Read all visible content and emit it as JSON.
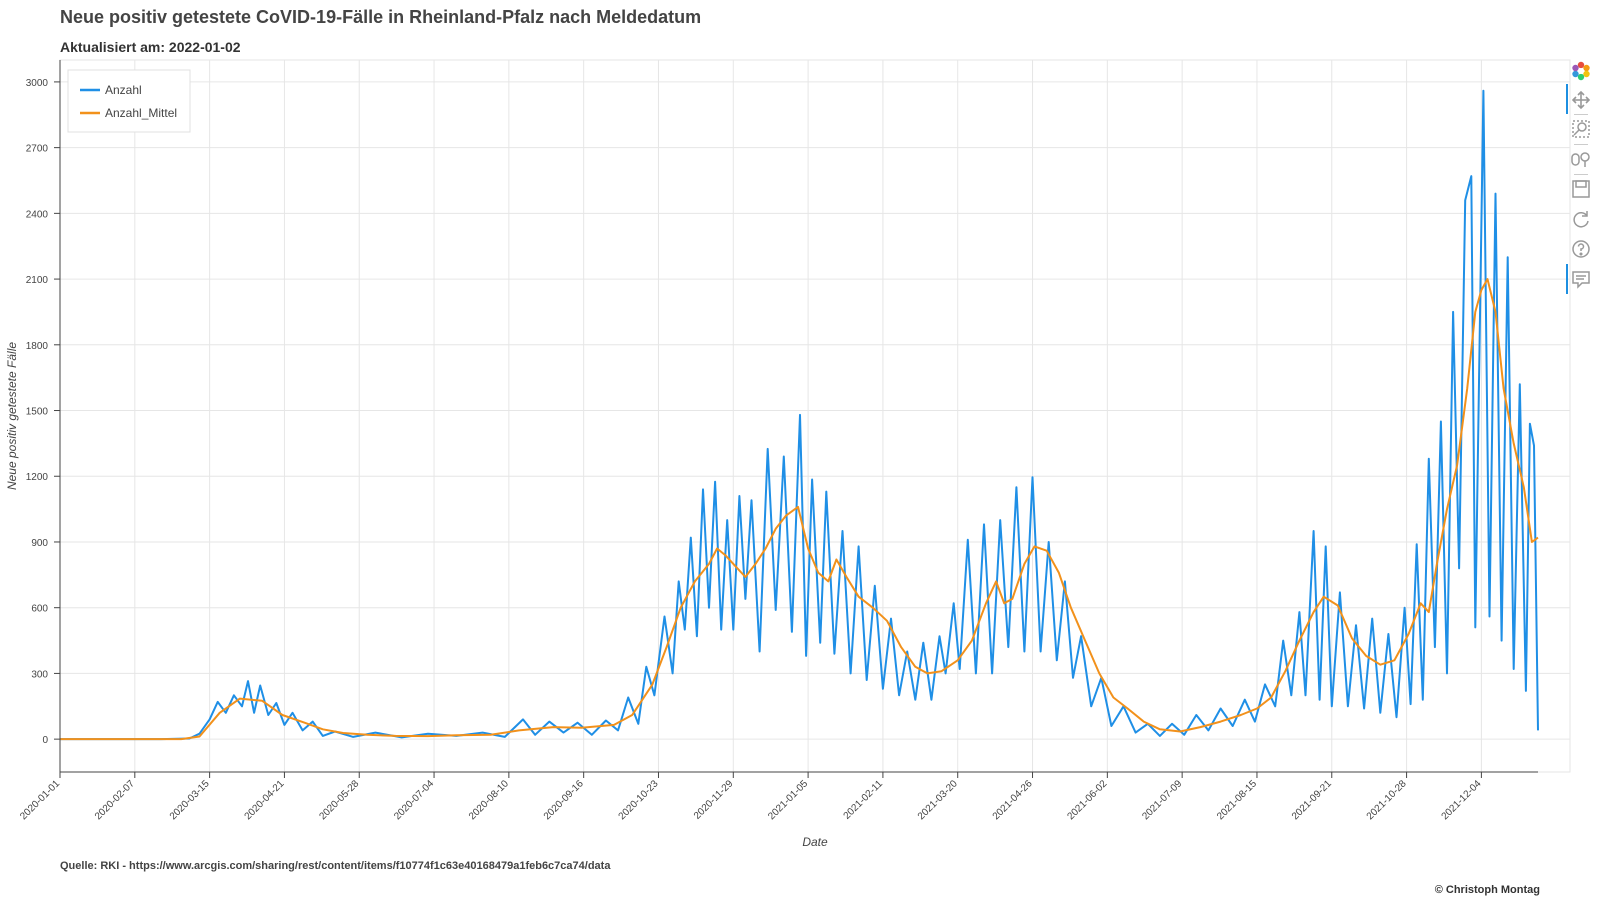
{
  "title": "Neue positiv getestete CoVID-19-Fälle in Rheinland-Pfalz nach Meldedatum",
  "subtitle": "Aktualisiert am: 2022-01-02",
  "source": "Quelle: RKI - https://www.arcgis.com/sharing/rest/content/items/f10774f1c63e40168479a1feb6c7ca74/data",
  "copyright": "© Christoph Montag",
  "toolbar": {
    "icons": [
      "bokeh-logo-icon",
      "pan-icon",
      "box-zoom-icon",
      "wheel-zoom-icon",
      "save-icon",
      "reset-icon",
      "help-icon",
      "hover-icon"
    ]
  },
  "chart_data": {
    "type": "line",
    "xlabel": "Date",
    "ylabel": "Neue positiv getestete Fälle",
    "x_ticks": [
      "2020-01-01",
      "2020-02-07",
      "2020-03-15",
      "2020-04-21",
      "2020-05-28",
      "2020-07-04",
      "2020-08-10",
      "2020-09-16",
      "2020-10-23",
      "2020-11-29",
      "2021-01-05",
      "2021-02-11",
      "2021-03-20",
      "2021-04-26",
      "2021-06-02",
      "2021-07-09",
      "2021-08-15",
      "2021-09-21",
      "2021-10-28",
      "2021-12-04"
    ],
    "y_ticks": [
      0,
      300,
      600,
      900,
      1200,
      1500,
      1800,
      2100,
      2400,
      2700,
      3000
    ],
    "xlim": [
      "2020-01-01",
      "2022-01-01"
    ],
    "ylim": [
      -150,
      3100
    ],
    "grid": true,
    "legend_position": "top-left",
    "colors": {
      "Anzahl": "#1f8fe6",
      "Anzahl_Mittel": "#f2911b"
    },
    "series": [
      {
        "name": "Anzahl",
        "points": [
          [
            "2020-01-01",
            0
          ],
          [
            "2020-02-20",
            0
          ],
          [
            "2020-03-05",
            3
          ],
          [
            "2020-03-10",
            25
          ],
          [
            "2020-03-15",
            90
          ],
          [
            "2020-03-19",
            170
          ],
          [
            "2020-03-23",
            120
          ],
          [
            "2020-03-27",
            200
          ],
          [
            "2020-03-31",
            150
          ],
          [
            "2020-04-03",
            265
          ],
          [
            "2020-04-06",
            120
          ],
          [
            "2020-04-09",
            245
          ],
          [
            "2020-04-13",
            110
          ],
          [
            "2020-04-17",
            165
          ],
          [
            "2020-04-21",
            65
          ],
          [
            "2020-04-25",
            120
          ],
          [
            "2020-04-30",
            40
          ],
          [
            "2020-05-05",
            80
          ],
          [
            "2020-05-10",
            15
          ],
          [
            "2020-05-16",
            35
          ],
          [
            "2020-05-25",
            10
          ],
          [
            "2020-06-05",
            30
          ],
          [
            "2020-06-18",
            8
          ],
          [
            "2020-07-01",
            25
          ],
          [
            "2020-07-15",
            15
          ],
          [
            "2020-07-28",
            30
          ],
          [
            "2020-08-08",
            10
          ],
          [
            "2020-08-17",
            90
          ],
          [
            "2020-08-23",
            20
          ],
          [
            "2020-08-30",
            80
          ],
          [
            "2020-09-06",
            30
          ],
          [
            "2020-09-13",
            75
          ],
          [
            "2020-09-20",
            20
          ],
          [
            "2020-09-27",
            85
          ],
          [
            "2020-10-03",
            40
          ],
          [
            "2020-10-08",
            190
          ],
          [
            "2020-10-13",
            70
          ],
          [
            "2020-10-17",
            330
          ],
          [
            "2020-10-21",
            200
          ],
          [
            "2020-10-26",
            560
          ],
          [
            "2020-10-30",
            300
          ],
          [
            "2020-11-02",
            720
          ],
          [
            "2020-11-05",
            500
          ],
          [
            "2020-11-08",
            920
          ],
          [
            "2020-11-11",
            470
          ],
          [
            "2020-11-14",
            1140
          ],
          [
            "2020-11-17",
            600
          ],
          [
            "2020-11-20",
            1175
          ],
          [
            "2020-11-23",
            500
          ],
          [
            "2020-11-26",
            1000
          ],
          [
            "2020-11-29",
            500
          ],
          [
            "2020-12-02",
            1110
          ],
          [
            "2020-12-05",
            640
          ],
          [
            "2020-12-08",
            1090
          ],
          [
            "2020-12-12",
            400
          ],
          [
            "2020-12-16",
            1325
          ],
          [
            "2020-12-20",
            590
          ],
          [
            "2020-12-24",
            1290
          ],
          [
            "2020-12-28",
            490
          ],
          [
            "2021-01-01",
            1480
          ],
          [
            "2021-01-04",
            380
          ],
          [
            "2021-01-07",
            1185
          ],
          [
            "2021-01-11",
            440
          ],
          [
            "2021-01-14",
            1130
          ],
          [
            "2021-01-18",
            390
          ],
          [
            "2021-01-22",
            950
          ],
          [
            "2021-01-26",
            300
          ],
          [
            "2021-01-30",
            880
          ],
          [
            "2021-02-03",
            270
          ],
          [
            "2021-02-07",
            700
          ],
          [
            "2021-02-11",
            230
          ],
          [
            "2021-02-15",
            550
          ],
          [
            "2021-02-19",
            200
          ],
          [
            "2021-02-23",
            400
          ],
          [
            "2021-02-27",
            180
          ],
          [
            "2021-03-03",
            440
          ],
          [
            "2021-03-07",
            180
          ],
          [
            "2021-03-11",
            470
          ],
          [
            "2021-03-14",
            300
          ],
          [
            "2021-03-18",
            620
          ],
          [
            "2021-03-21",
            320
          ],
          [
            "2021-03-25",
            910
          ],
          [
            "2021-03-29",
            300
          ],
          [
            "2021-04-02",
            980
          ],
          [
            "2021-04-06",
            300
          ],
          [
            "2021-04-10",
            1000
          ],
          [
            "2021-04-14",
            420
          ],
          [
            "2021-04-18",
            1150
          ],
          [
            "2021-04-22",
            400
          ],
          [
            "2021-04-26",
            1195
          ],
          [
            "2021-04-30",
            400
          ],
          [
            "2021-05-04",
            900
          ],
          [
            "2021-05-08",
            360
          ],
          [
            "2021-05-12",
            720
          ],
          [
            "2021-05-16",
            280
          ],
          [
            "2021-05-20",
            470
          ],
          [
            "2021-05-25",
            150
          ],
          [
            "2021-05-30",
            280
          ],
          [
            "2021-06-04",
            60
          ],
          [
            "2021-06-10",
            150
          ],
          [
            "2021-06-16",
            30
          ],
          [
            "2021-06-22",
            70
          ],
          [
            "2021-06-28",
            15
          ],
          [
            "2021-07-04",
            70
          ],
          [
            "2021-07-10",
            20
          ],
          [
            "2021-07-16",
            110
          ],
          [
            "2021-07-22",
            40
          ],
          [
            "2021-07-28",
            140
          ],
          [
            "2021-08-03",
            60
          ],
          [
            "2021-08-09",
            180
          ],
          [
            "2021-08-14",
            80
          ],
          [
            "2021-08-19",
            250
          ],
          [
            "2021-08-24",
            150
          ],
          [
            "2021-08-28",
            450
          ],
          [
            "2021-09-01",
            200
          ],
          [
            "2021-09-05",
            580
          ],
          [
            "2021-09-08",
            200
          ],
          [
            "2021-09-12",
            950
          ],
          [
            "2021-09-15",
            180
          ],
          [
            "2021-09-18",
            880
          ],
          [
            "2021-09-21",
            150
          ],
          [
            "2021-09-25",
            670
          ],
          [
            "2021-09-29",
            150
          ],
          [
            "2021-10-03",
            520
          ],
          [
            "2021-10-07",
            140
          ],
          [
            "2021-10-11",
            550
          ],
          [
            "2021-10-15",
            120
          ],
          [
            "2021-10-19",
            480
          ],
          [
            "2021-10-23",
            100
          ],
          [
            "2021-10-27",
            600
          ],
          [
            "2021-10-30",
            160
          ],
          [
            "2021-11-02",
            890
          ],
          [
            "2021-11-05",
            180
          ],
          [
            "2021-11-08",
            1280
          ],
          [
            "2021-11-11",
            420
          ],
          [
            "2021-11-14",
            1450
          ],
          [
            "2021-11-17",
            300
          ],
          [
            "2021-11-20",
            1950
          ],
          [
            "2021-11-23",
            780
          ],
          [
            "2021-11-26",
            2460
          ],
          [
            "2021-11-29",
            2570
          ],
          [
            "2021-12-01",
            510
          ],
          [
            "2021-12-05",
            2960
          ],
          [
            "2021-12-08",
            560
          ],
          [
            "2021-12-11",
            2490
          ],
          [
            "2021-12-14",
            450
          ],
          [
            "2021-12-17",
            2200
          ],
          [
            "2021-12-20",
            320
          ],
          [
            "2021-12-23",
            1620
          ],
          [
            "2021-12-26",
            220
          ],
          [
            "2021-12-28",
            1440
          ],
          [
            "2021-12-30",
            1340
          ],
          [
            "2022-01-01",
            40
          ]
        ]
      },
      {
        "name": "Anzahl_Mittel",
        "points": [
          [
            "2020-01-01",
            0
          ],
          [
            "2020-03-01",
            0
          ],
          [
            "2020-03-10",
            12
          ],
          [
            "2020-03-20",
            120
          ],
          [
            "2020-03-30",
            185
          ],
          [
            "2020-04-10",
            175
          ],
          [
            "2020-04-20",
            110
          ],
          [
            "2020-05-01",
            75
          ],
          [
            "2020-05-10",
            45
          ],
          [
            "2020-05-20",
            28
          ],
          [
            "2020-06-01",
            20
          ],
          [
            "2020-06-15",
            15
          ],
          [
            "2020-07-01",
            14
          ],
          [
            "2020-07-15",
            18
          ],
          [
            "2020-08-01",
            20
          ],
          [
            "2020-08-15",
            40
          ],
          [
            "2020-09-01",
            55
          ],
          [
            "2020-09-15",
            52
          ],
          [
            "2020-10-01",
            65
          ],
          [
            "2020-10-10",
            110
          ],
          [
            "2020-10-20",
            250
          ],
          [
            "2020-10-27",
            420
          ],
          [
            "2020-11-03",
            600
          ],
          [
            "2020-11-10",
            720
          ],
          [
            "2020-11-17",
            800
          ],
          [
            "2020-11-21",
            870
          ],
          [
            "2020-11-25",
            840
          ],
          [
            "2020-11-30",
            790
          ],
          [
            "2020-12-05",
            740
          ],
          [
            "2020-12-10",
            800
          ],
          [
            "2020-12-15",
            870
          ],
          [
            "2020-12-20",
            960
          ],
          [
            "2020-12-25",
            1020
          ],
          [
            "2020-12-31",
            1060
          ],
          [
            "2021-01-05",
            870
          ],
          [
            "2021-01-10",
            760
          ],
          [
            "2021-01-15",
            720
          ],
          [
            "2021-01-19",
            820
          ],
          [
            "2021-01-24",
            740
          ],
          [
            "2021-01-30",
            650
          ],
          [
            "2021-02-06",
            600
          ],
          [
            "2021-02-13",
            540
          ],
          [
            "2021-02-20",
            420
          ],
          [
            "2021-02-27",
            330
          ],
          [
            "2021-03-05",
            300
          ],
          [
            "2021-03-12",
            310
          ],
          [
            "2021-03-20",
            360
          ],
          [
            "2021-03-27",
            450
          ],
          [
            "2021-04-03",
            620
          ],
          [
            "2021-04-08",
            720
          ],
          [
            "2021-04-12",
            620
          ],
          [
            "2021-04-16",
            640
          ],
          [
            "2021-04-22",
            800
          ],
          [
            "2021-04-27",
            880
          ],
          [
            "2021-05-03",
            860
          ],
          [
            "2021-05-09",
            760
          ],
          [
            "2021-05-15",
            600
          ],
          [
            "2021-05-22",
            450
          ],
          [
            "2021-05-29",
            300
          ],
          [
            "2021-06-05",
            190
          ],
          [
            "2021-06-12",
            140
          ],
          [
            "2021-06-20",
            80
          ],
          [
            "2021-06-28",
            45
          ],
          [
            "2021-07-08",
            35
          ],
          [
            "2021-07-18",
            55
          ],
          [
            "2021-07-28",
            80
          ],
          [
            "2021-08-07",
            110
          ],
          [
            "2021-08-15",
            140
          ],
          [
            "2021-08-22",
            190
          ],
          [
            "2021-08-29",
            310
          ],
          [
            "2021-09-05",
            450
          ],
          [
            "2021-09-12",
            580
          ],
          [
            "2021-09-17",
            650
          ],
          [
            "2021-09-24",
            610
          ],
          [
            "2021-10-01",
            460
          ],
          [
            "2021-10-08",
            380
          ],
          [
            "2021-10-15",
            340
          ],
          [
            "2021-10-22",
            360
          ],
          [
            "2021-10-29",
            480
          ],
          [
            "2021-11-04",
            620
          ],
          [
            "2021-11-08",
            580
          ],
          [
            "2021-11-12",
            800
          ],
          [
            "2021-11-17",
            1050
          ],
          [
            "2021-11-22",
            1250
          ],
          [
            "2021-11-27",
            1600
          ],
          [
            "2021-12-01",
            1950
          ],
          [
            "2021-12-04",
            2050
          ],
          [
            "2021-12-07",
            2100
          ],
          [
            "2021-12-11",
            1950
          ],
          [
            "2021-12-15",
            1600
          ],
          [
            "2021-12-20",
            1350
          ],
          [
            "2021-12-25",
            1150
          ],
          [
            "2021-12-29",
            900
          ],
          [
            "2022-01-01",
            920
          ]
        ]
      }
    ]
  }
}
